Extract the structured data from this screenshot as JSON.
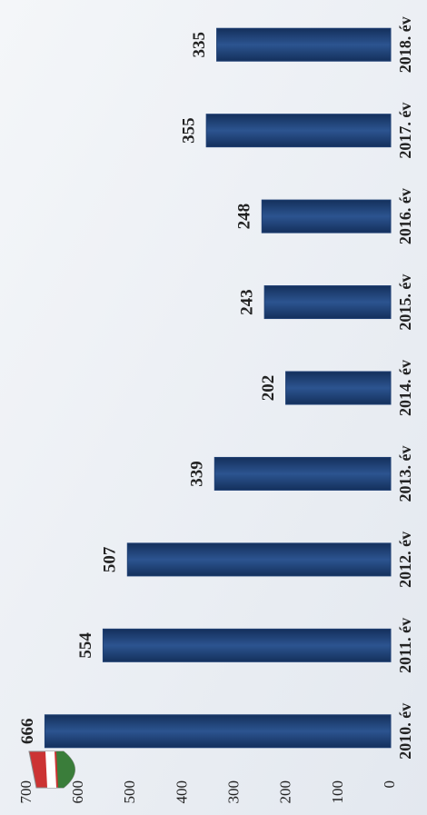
{
  "chart_data": {
    "type": "bar",
    "categories": [
      "2010. év",
      "2011. év",
      "2012. év",
      "2013. év",
      "2014. év",
      "2015. év",
      "2016. év",
      "2017. év",
      "2018. év"
    ],
    "values": [
      666,
      554,
      507,
      339,
      202,
      243,
      248,
      355,
      335
    ],
    "color": "#1f3f73",
    "ylim": [
      0,
      700
    ],
    "yticks": [
      0,
      100,
      200,
      300,
      400,
      500,
      600,
      700
    ],
    "grid": false
  }
}
